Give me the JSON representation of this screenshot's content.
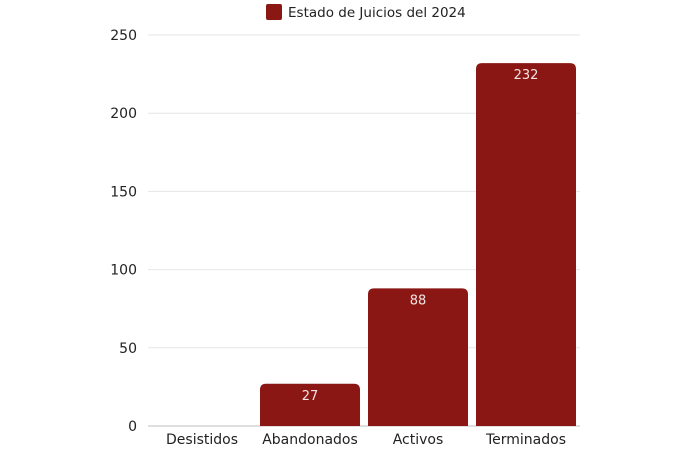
{
  "chart_data": {
    "type": "bar",
    "categories": [
      "Desistidos",
      "Abandonados",
      "Activos",
      "Terminados"
    ],
    "series": [
      {
        "name": "Estado de Juicios del 2024",
        "values": [
          0,
          27,
          88,
          232
        ],
        "data_labels": [
          "",
          "27",
          "88",
          "232"
        ]
      }
    ],
    "title": "",
    "xlabel": "",
    "ylabel": "",
    "ylim": [
      0,
      250
    ],
    "yticks": [
      "0",
      "50",
      "100",
      "150",
      "200",
      "250"
    ],
    "grid": true,
    "legend_position": "top-center",
    "colors": {
      "bar": "#8b1714",
      "grid": "#e6e6e6"
    }
  }
}
